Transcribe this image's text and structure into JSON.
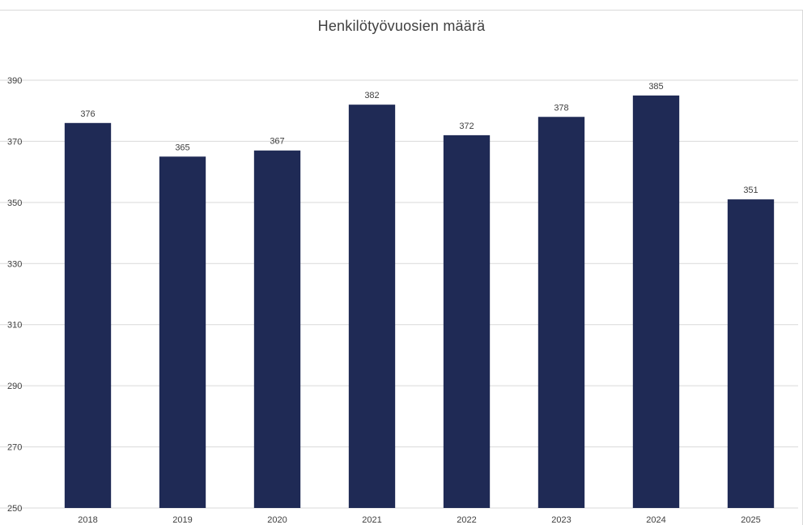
{
  "colors": {
    "bar": "#1f2a55",
    "grid": "#d9d9d9",
    "text": "#404040",
    "background": "#ffffff"
  },
  "chart_data": {
    "type": "bar",
    "title": "Henkilötyövuosien määrä",
    "xlabel": "",
    "ylabel": "",
    "categories": [
      "2018",
      "2019",
      "2020",
      "2021",
      "2022",
      "2023",
      "2024",
      "2025"
    ],
    "values": [
      376,
      365,
      367,
      382,
      372,
      378,
      385,
      351
    ],
    "ylim": [
      250,
      390
    ],
    "yticks": [
      250,
      270,
      290,
      310,
      330,
      350,
      370,
      390
    ],
    "data_labels": true,
    "grid": "horizontal",
    "legend": "none"
  }
}
